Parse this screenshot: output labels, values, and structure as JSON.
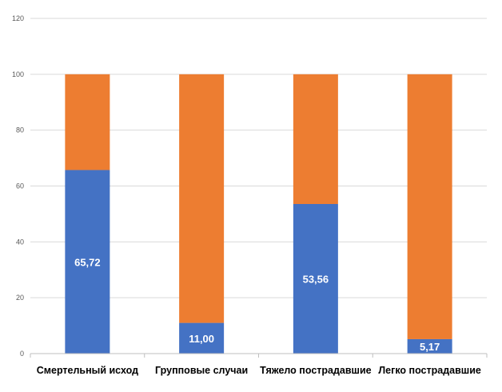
{
  "chart_data": {
    "type": "bar",
    "stacked": true,
    "categories": [
      "Смертельный исход",
      "Групповые случаи",
      "Тяжело пострадавшие",
      "Легко пострадавшие"
    ],
    "series": [
      {
        "values": [
          65.72,
          11.0,
          53.56,
          5.17
        ],
        "color": "#4472c4",
        "data_labels": [
          "65,72",
          "11,00",
          "53,56",
          "5,17"
        ]
      },
      {
        "values": [
          34.28,
          89.0,
          46.44,
          94.83
        ],
        "color": "#ed7d31"
      }
    ],
    "title": "",
    "xlabel": "",
    "ylabel": "",
    "ylim": [
      0,
      120
    ],
    "yticks": [
      0,
      20,
      40,
      60,
      80,
      100,
      120
    ],
    "grid": true,
    "legend": "none"
  }
}
